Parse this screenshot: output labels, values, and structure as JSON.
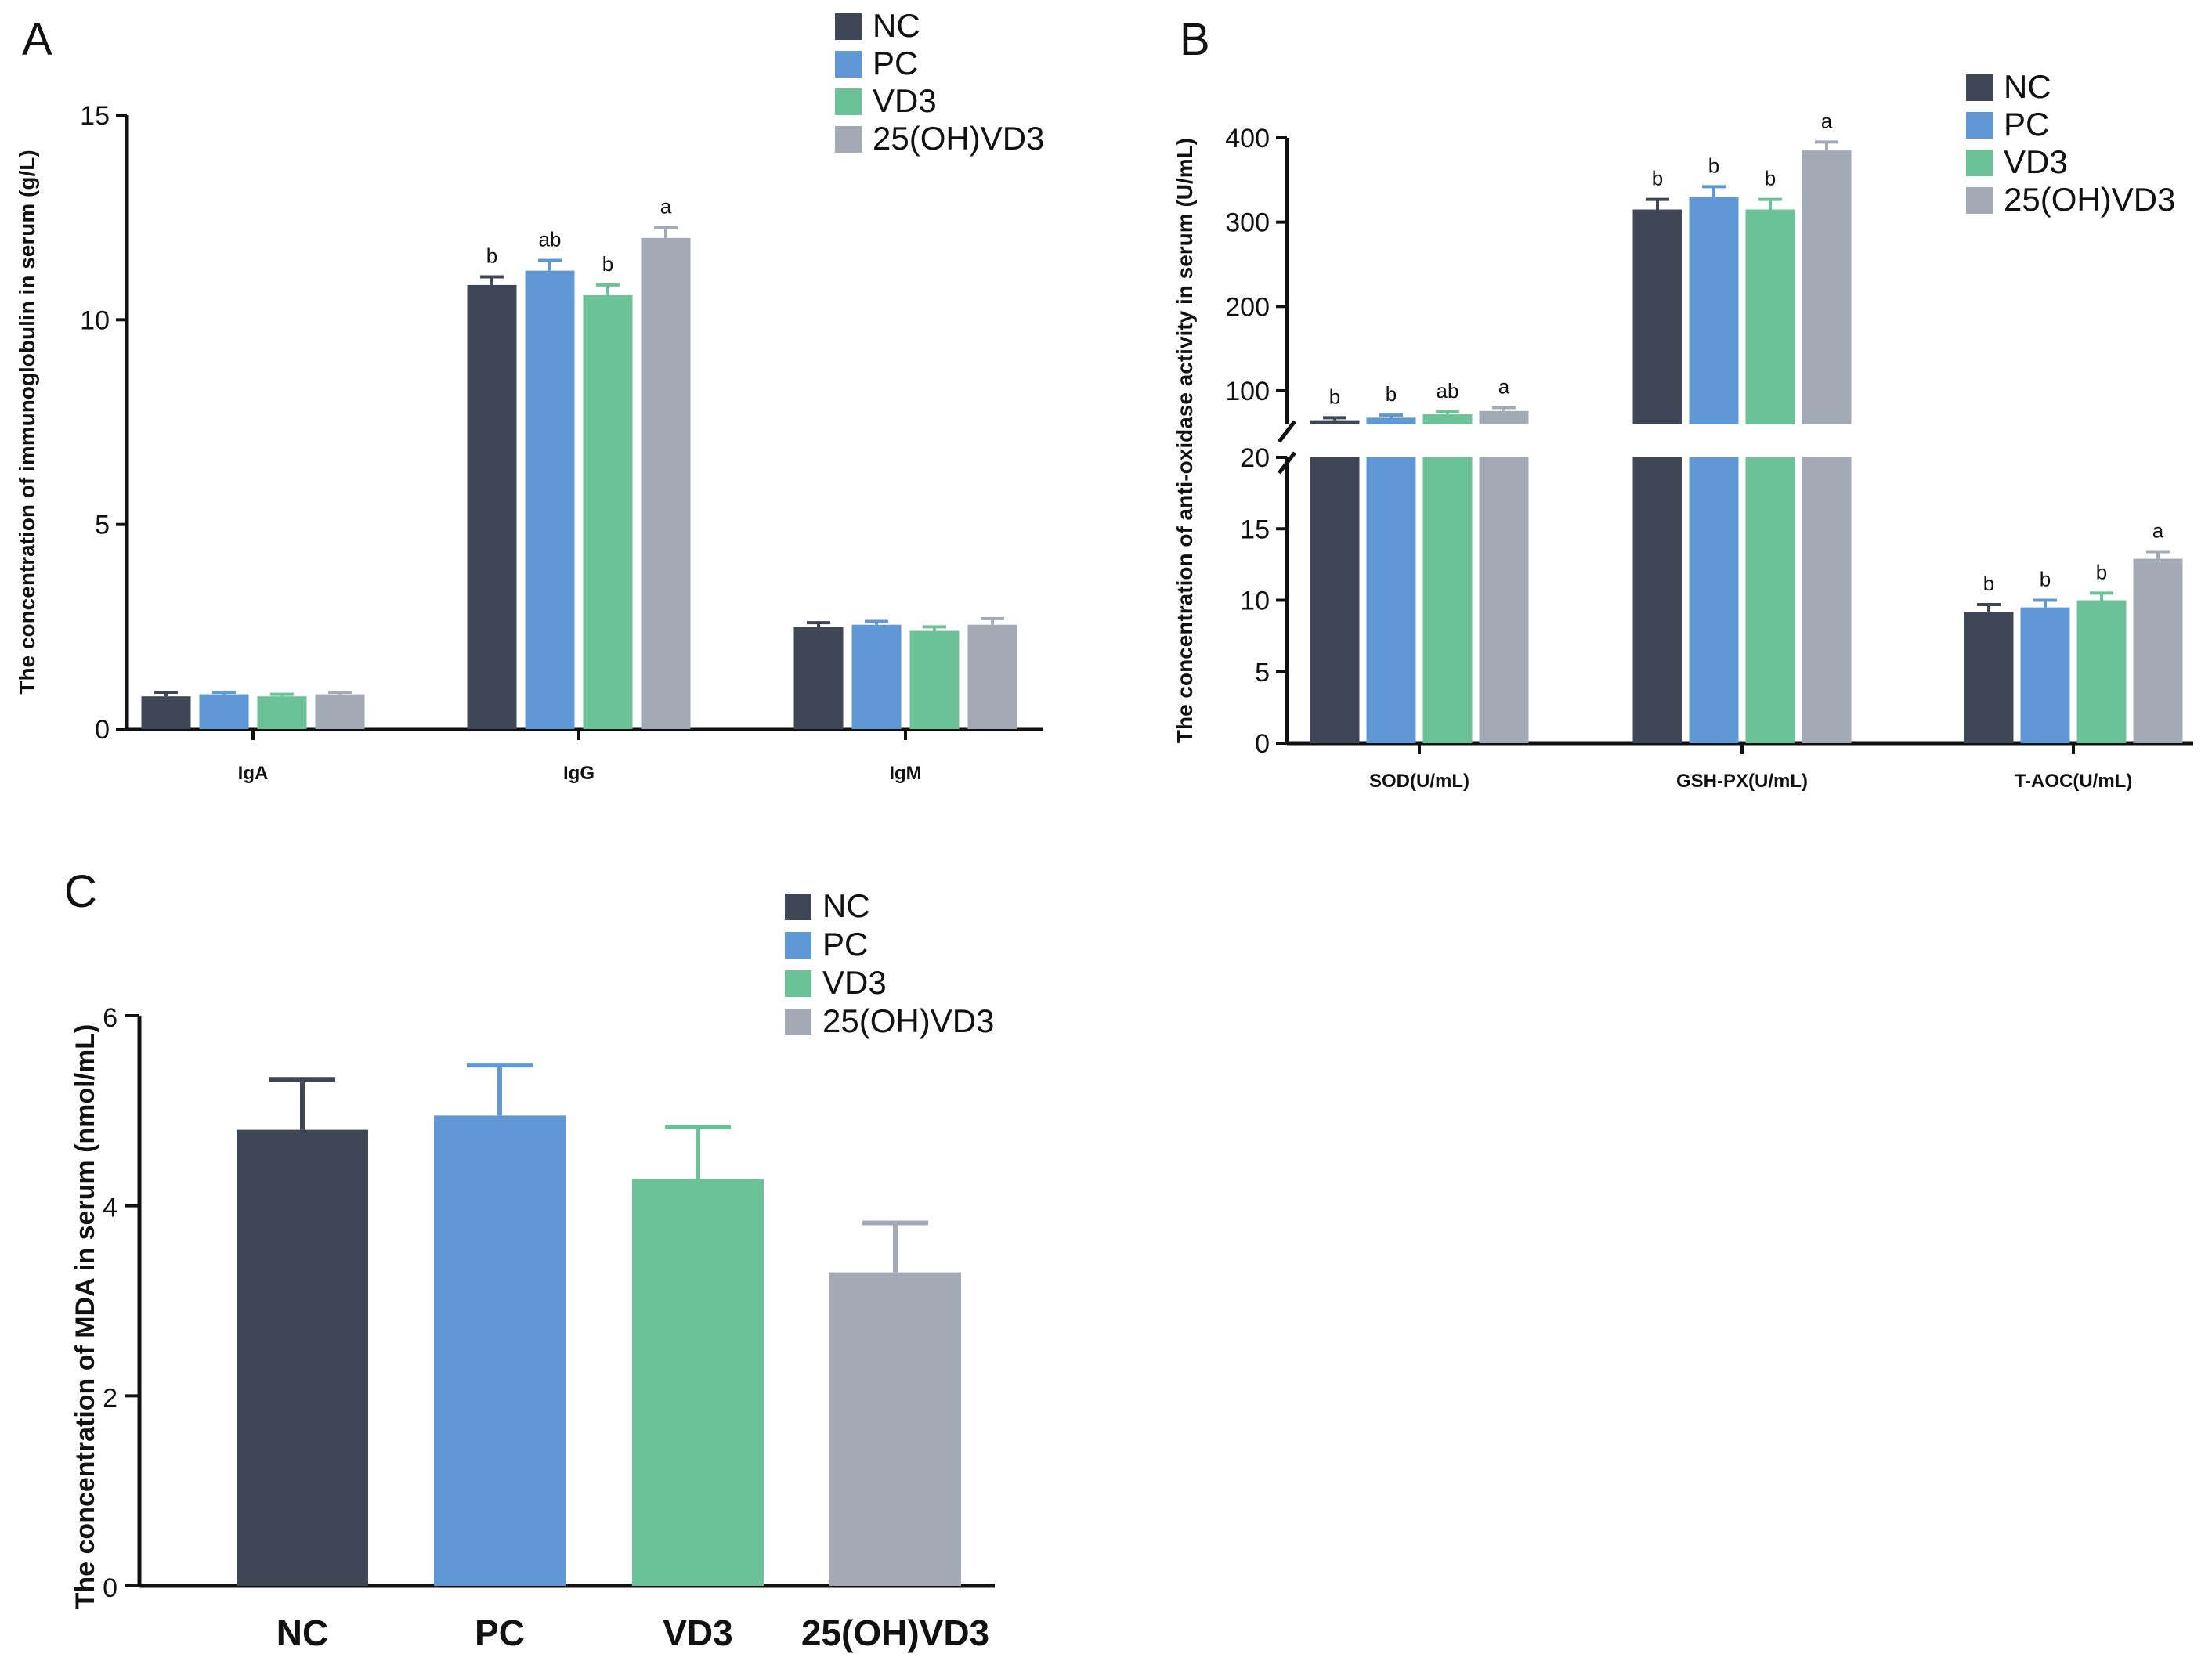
{
  "colors": {
    "NC": "#3f4756",
    "PC": "#5f98d4",
    "VD3": "#6cc297",
    "25(OH)VD3": "#a3aab6"
  },
  "chart_data": [
    {
      "panel": "A",
      "type": "bar",
      "categories": [
        "IgA",
        "IgG",
        "IgM"
      ],
      "ylabel": "The concentration of immunoglobulin in serum (g/L)",
      "ylim": [
        0,
        15
      ],
      "yticks": [
        0,
        5,
        10,
        15
      ],
      "legend_position": "top-right",
      "series": [
        {
          "name": "NC",
          "values": [
            0.8,
            10.85,
            2.5
          ],
          "errors": [
            0.1,
            0.2,
            0.1
          ],
          "labels": [
            "",
            "b",
            ""
          ]
        },
        {
          "name": "PC",
          "values": [
            0.85,
            11.2,
            2.55
          ],
          "errors": [
            0.05,
            0.25,
            0.08
          ],
          "labels": [
            "",
            "ab",
            ""
          ]
        },
        {
          "name": "VD3",
          "values": [
            0.8,
            10.6,
            2.4
          ],
          "errors": [
            0.05,
            0.25,
            0.1
          ],
          "labels": [
            "",
            "b",
            ""
          ]
        },
        {
          "name": "25(OH)VD3",
          "values": [
            0.85,
            12.0,
            2.55
          ],
          "errors": [
            0.05,
            0.25,
            0.15
          ],
          "labels": [
            "",
            "a",
            ""
          ]
        }
      ]
    },
    {
      "panel": "B",
      "type": "bar",
      "categories": [
        "SOD(U/mL)",
        "GSH-PX(U/mL)",
        "T-AOC(U/mL)"
      ],
      "ylabel": "The concentration of anti-oxidase activity in serum (U/mL)",
      "axis_break": {
        "lower_range": [
          0,
          20
        ],
        "upper_range": [
          60,
          400
        ]
      },
      "yticks_lower": [
        0,
        5,
        10,
        15,
        20
      ],
      "yticks_upper": [
        100,
        200,
        300,
        400
      ],
      "legend_position": "top-right",
      "series": [
        {
          "name": "NC",
          "values": [
            65,
            315,
            9.2
          ],
          "errors": [
            3,
            12,
            0.5
          ],
          "labels": [
            "b",
            "b",
            "b"
          ]
        },
        {
          "name": "PC",
          "values": [
            68,
            330,
            9.5
          ],
          "errors": [
            3,
            12,
            0.5
          ],
          "labels": [
            "b",
            "b",
            "b"
          ]
        },
        {
          "name": "VD3",
          "values": [
            72,
            315,
            10.0
          ],
          "errors": [
            3,
            12,
            0.5
          ],
          "labels": [
            "ab",
            "b",
            "b"
          ]
        },
        {
          "name": "25(OH)VD3",
          "values": [
            76,
            385,
            12.9
          ],
          "errors": [
            4,
            10,
            0.5
          ],
          "labels": [
            "a",
            "a",
            "a"
          ]
        }
      ]
    },
    {
      "panel": "C",
      "type": "bar",
      "categories": [
        "NC",
        "PC",
        "VD3",
        "25(OH)VD3"
      ],
      "ylabel": "The concentration of MDA in serum (nmol/mL)",
      "ylim": [
        0,
        6
      ],
      "yticks": [
        0,
        2,
        4,
        6
      ],
      "legend_position": "top-right",
      "series": [
        {
          "name": "MDA",
          "values": [
            4.8,
            4.95,
            4.28,
            3.3
          ],
          "errors": [
            0.53,
            0.53,
            0.55,
            0.52
          ]
        }
      ]
    }
  ]
}
